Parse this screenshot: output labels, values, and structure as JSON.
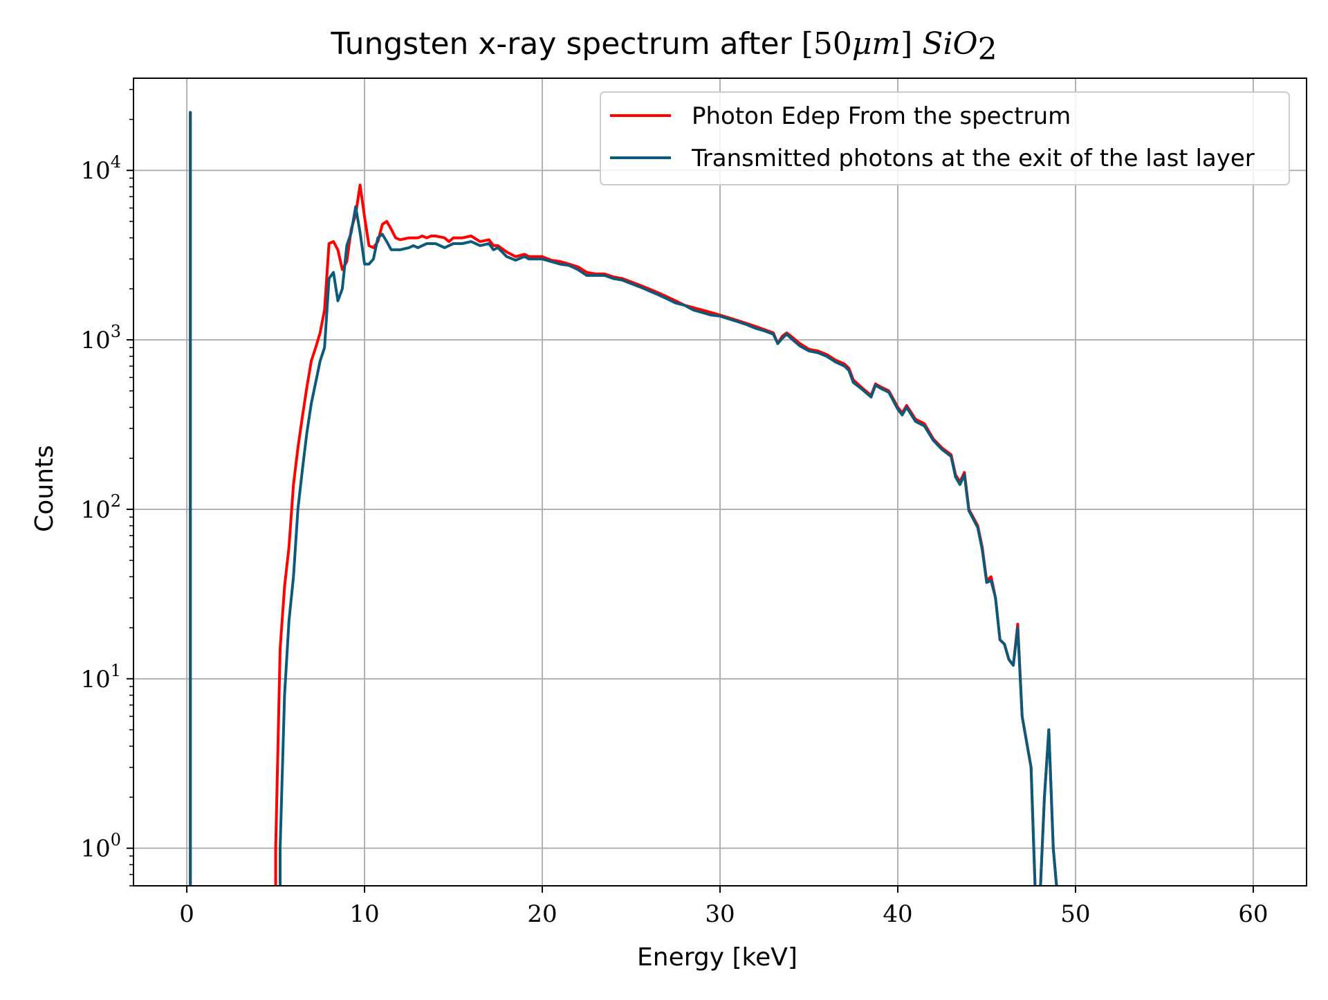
{
  "chart_data": {
    "type": "line",
    "title": {
      "text": "Tungsten x-ray spectrum after ",
      "math_open": "[",
      "math_num": "50",
      "math_mu": "μm",
      "math_close": "]",
      "math_species": "SiO",
      "math_sub": "2"
    },
    "xlabel": "Energy [keV]",
    "ylabel": "Counts",
    "x_scale": "linear",
    "y_scale": "log",
    "xlim": [
      -3,
      63
    ],
    "ylim": [
      0.6,
      35000
    ],
    "x_ticks": [
      {
        "value": 0,
        "label": "0"
      },
      {
        "value": 10,
        "label": "10"
      },
      {
        "value": 20,
        "label": "20"
      },
      {
        "value": 30,
        "label": "30"
      },
      {
        "value": 40,
        "label": "40"
      },
      {
        "value": 50,
        "label": "50"
      },
      {
        "value": 60,
        "label": "60"
      }
    ],
    "y_ticks": [
      {
        "value": 1,
        "base": "10",
        "exp": "0"
      },
      {
        "value": 10,
        "base": "10",
        "exp": "1"
      },
      {
        "value": 100,
        "base": "10",
        "exp": "2"
      },
      {
        "value": 1000,
        "base": "10",
        "exp": "3"
      },
      {
        "value": 10000,
        "base": "10",
        "exp": "4"
      }
    ],
    "grid": true,
    "legend_position": "top-right",
    "series": [
      {
        "name": "Photon Edep From the spectrum",
        "color": "#ff0000",
        "points": [
          [
            0.2,
            0.5
          ],
          [
            0.2,
            22000
          ],
          [
            0.2,
            0.5
          ],
          [
            5.0,
            0.5
          ],
          [
            5.0,
            1
          ],
          [
            5.25,
            15
          ],
          [
            5.5,
            35
          ],
          [
            5.75,
            60
          ],
          [
            6.0,
            140
          ],
          [
            6.25,
            230
          ],
          [
            6.5,
            350
          ],
          [
            6.75,
            520
          ],
          [
            7.0,
            750
          ],
          [
            7.25,
            900
          ],
          [
            7.5,
            1100
          ],
          [
            7.75,
            1500
          ],
          [
            8.0,
            3700
          ],
          [
            8.25,
            3800
          ],
          [
            8.5,
            3400
          ],
          [
            8.75,
            2600
          ],
          [
            9.0,
            2900
          ],
          [
            9.25,
            4500
          ],
          [
            9.5,
            5500
          ],
          [
            9.75,
            8200
          ],
          [
            10.0,
            5300
          ],
          [
            10.25,
            3600
          ],
          [
            10.5,
            3500
          ],
          [
            10.75,
            3800
          ],
          [
            11.0,
            4800
          ],
          [
            11.25,
            5000
          ],
          [
            11.5,
            4500
          ],
          [
            11.75,
            4000
          ],
          [
            12.0,
            3900
          ],
          [
            12.5,
            4000
          ],
          [
            13.0,
            4000
          ],
          [
            13.25,
            4100
          ],
          [
            13.5,
            4000
          ],
          [
            13.75,
            4100
          ],
          [
            14.0,
            4100
          ],
          [
            14.5,
            4000
          ],
          [
            14.75,
            3800
          ],
          [
            15.0,
            4000
          ],
          [
            15.5,
            4000
          ],
          [
            16.0,
            4100
          ],
          [
            16.5,
            3800
          ],
          [
            17.0,
            3900
          ],
          [
            17.25,
            3600
          ],
          [
            17.5,
            3600
          ],
          [
            18.0,
            3300
          ],
          [
            18.5,
            3100
          ],
          [
            19.0,
            3200
          ],
          [
            19.25,
            3100
          ],
          [
            20.0,
            3100
          ],
          [
            20.5,
            2950
          ],
          [
            21.0,
            2900
          ],
          [
            21.5,
            2800
          ],
          [
            22.0,
            2700
          ],
          [
            22.5,
            2500
          ],
          [
            23.0,
            2450
          ],
          [
            23.5,
            2450
          ],
          [
            24.0,
            2350
          ],
          [
            24.5,
            2300
          ],
          [
            25.0,
            2200
          ],
          [
            25.5,
            2100
          ],
          [
            26.0,
            2000
          ],
          [
            26.5,
            1900
          ],
          [
            27.0,
            1800
          ],
          [
            27.5,
            1700
          ],
          [
            28.0,
            1600
          ],
          [
            28.5,
            1550
          ],
          [
            29.0,
            1500
          ],
          [
            29.5,
            1450
          ],
          [
            30.0,
            1400
          ],
          [
            30.5,
            1350
          ],
          [
            31.0,
            1300
          ],
          [
            31.5,
            1250
          ],
          [
            32.0,
            1200
          ],
          [
            32.5,
            1150
          ],
          [
            33.0,
            1100
          ],
          [
            33.25,
            950
          ],
          [
            33.5,
            1050
          ],
          [
            33.75,
            1100
          ],
          [
            34.0,
            1050
          ],
          [
            34.5,
            950
          ],
          [
            35.0,
            880
          ],
          [
            35.5,
            860
          ],
          [
            36.0,
            820
          ],
          [
            36.5,
            760
          ],
          [
            37.0,
            720
          ],
          [
            37.25,
            680
          ],
          [
            37.5,
            580
          ],
          [
            38.0,
            520
          ],
          [
            38.5,
            470
          ],
          [
            38.75,
            550
          ],
          [
            39.0,
            530
          ],
          [
            39.5,
            500
          ],
          [
            40.0,
            400
          ],
          [
            40.25,
            370
          ],
          [
            40.5,
            410
          ],
          [
            41.0,
            340
          ],
          [
            41.5,
            320
          ],
          [
            42.0,
            260
          ],
          [
            42.5,
            230
          ],
          [
            43.0,
            210
          ],
          [
            43.25,
            160
          ],
          [
            43.5,
            145
          ],
          [
            43.75,
            165
          ],
          [
            44.0,
            100
          ],
          [
            44.5,
            80
          ],
          [
            44.75,
            60
          ],
          [
            45.0,
            38
          ],
          [
            45.25,
            40
          ],
          [
            45.5,
            30
          ],
          [
            45.75,
            17
          ],
          [
            46.0,
            16
          ],
          [
            46.25,
            13
          ],
          [
            46.5,
            12
          ],
          [
            46.75,
            21
          ],
          [
            47.0,
            6
          ],
          [
            47.5,
            3
          ],
          [
            47.75,
            0.5
          ],
          [
            48.0,
            0.5
          ],
          [
            48.25,
            2
          ],
          [
            48.5,
            5
          ],
          [
            48.75,
            1
          ],
          [
            49.0,
            0.5
          ]
        ]
      },
      {
        "name": "Transmitted photons at the exit of the last layer",
        "color": "#0c5a7a",
        "points": [
          [
            0.2,
            0.5
          ],
          [
            0.2,
            22000
          ],
          [
            0.2,
            0.5
          ],
          [
            5.25,
            0.5
          ],
          [
            5.25,
            1
          ],
          [
            5.5,
            8
          ],
          [
            5.75,
            22
          ],
          [
            6.0,
            40
          ],
          [
            6.25,
            100
          ],
          [
            6.5,
            170
          ],
          [
            6.75,
            280
          ],
          [
            7.0,
            420
          ],
          [
            7.25,
            560
          ],
          [
            7.5,
            750
          ],
          [
            7.75,
            900
          ],
          [
            8.0,
            2300
          ],
          [
            8.25,
            2500
          ],
          [
            8.5,
            1700
          ],
          [
            8.75,
            2000
          ],
          [
            9.0,
            3600
          ],
          [
            9.25,
            4300
          ],
          [
            9.5,
            6100
          ],
          [
            9.75,
            4300
          ],
          [
            10.0,
            2800
          ],
          [
            10.25,
            2800
          ],
          [
            10.5,
            3000
          ],
          [
            10.75,
            4000
          ],
          [
            11.0,
            4200
          ],
          [
            11.25,
            3800
          ],
          [
            11.5,
            3400
          ],
          [
            12.0,
            3400
          ],
          [
            12.5,
            3500
          ],
          [
            12.75,
            3600
          ],
          [
            13.0,
            3500
          ],
          [
            13.5,
            3700
          ],
          [
            14.0,
            3700
          ],
          [
            14.5,
            3500
          ],
          [
            15.0,
            3700
          ],
          [
            15.5,
            3700
          ],
          [
            16.0,
            3800
          ],
          [
            16.5,
            3600
          ],
          [
            17.0,
            3700
          ],
          [
            17.25,
            3400
          ],
          [
            17.5,
            3500
          ],
          [
            18.0,
            3100
          ],
          [
            18.5,
            2950
          ],
          [
            19.0,
            3100
          ],
          [
            19.25,
            3000
          ],
          [
            20.0,
            3000
          ],
          [
            20.5,
            2900
          ],
          [
            21.0,
            2800
          ],
          [
            21.5,
            2750
          ],
          [
            22.0,
            2600
          ],
          [
            22.5,
            2400
          ],
          [
            23.0,
            2400
          ],
          [
            23.5,
            2400
          ],
          [
            24.0,
            2300
          ],
          [
            24.5,
            2250
          ],
          [
            25.0,
            2150
          ],
          [
            25.5,
            2050
          ],
          [
            26.0,
            1950
          ],
          [
            26.5,
            1850
          ],
          [
            27.0,
            1750
          ],
          [
            27.5,
            1650
          ],
          [
            28.0,
            1600
          ],
          [
            28.5,
            1500
          ],
          [
            29.0,
            1450
          ],
          [
            29.5,
            1400
          ],
          [
            30.0,
            1380
          ],
          [
            30.5,
            1330
          ],
          [
            31.0,
            1280
          ],
          [
            31.5,
            1230
          ],
          [
            32.0,
            1170
          ],
          [
            32.5,
            1130
          ],
          [
            33.0,
            1080
          ],
          [
            33.25,
            950
          ],
          [
            33.5,
            1020
          ],
          [
            33.75,
            1080
          ],
          [
            34.0,
            1020
          ],
          [
            34.5,
            920
          ],
          [
            35.0,
            860
          ],
          [
            35.5,
            840
          ],
          [
            36.0,
            800
          ],
          [
            36.5,
            740
          ],
          [
            37.0,
            700
          ],
          [
            37.25,
            660
          ],
          [
            37.5,
            560
          ],
          [
            38.0,
            510
          ],
          [
            38.5,
            460
          ],
          [
            38.75,
            540
          ],
          [
            39.0,
            520
          ],
          [
            39.5,
            490
          ],
          [
            40.0,
            390
          ],
          [
            40.25,
            360
          ],
          [
            40.5,
            400
          ],
          [
            41.0,
            330
          ],
          [
            41.5,
            310
          ],
          [
            42.0,
            255
          ],
          [
            42.5,
            225
          ],
          [
            43.0,
            205
          ],
          [
            43.25,
            155
          ],
          [
            43.5,
            140
          ],
          [
            43.75,
            160
          ],
          [
            44.0,
            98
          ],
          [
            44.5,
            78
          ],
          [
            44.75,
            58
          ],
          [
            45.0,
            37
          ],
          [
            45.25,
            38
          ],
          [
            45.5,
            30
          ],
          [
            45.75,
            17
          ],
          [
            46.0,
            16
          ],
          [
            46.25,
            13
          ],
          [
            46.5,
            12
          ],
          [
            46.75,
            20
          ],
          [
            47.0,
            6
          ],
          [
            47.5,
            3
          ],
          [
            47.75,
            0.5
          ],
          [
            48.0,
            0.5
          ],
          [
            48.25,
            2
          ],
          [
            48.5,
            5
          ],
          [
            48.75,
            1
          ],
          [
            49.0,
            0.5
          ]
        ]
      }
    ]
  }
}
